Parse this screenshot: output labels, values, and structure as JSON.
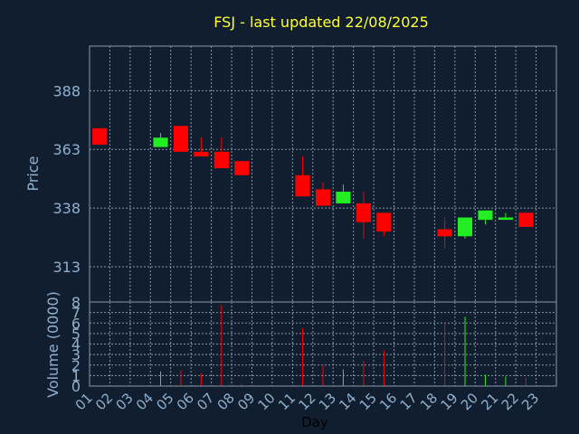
{
  "title": "FSJ - last updated 22/08/2025",
  "colors": {
    "up": "#22ee22",
    "down": "#ff0000",
    "title": "#ffff33",
    "axis": "#8fb0cf",
    "grid": "#8899aa",
    "background": "#111e2f"
  },
  "chart_data": [
    {
      "type": "candlestick",
      "ylabel": "Price",
      "ylim": [
        298,
        407
      ],
      "yticks": [
        313,
        338,
        363,
        388
      ],
      "grid": true,
      "candles": [
        {
          "day": 1,
          "open": 372,
          "close": 365,
          "high": 372,
          "low": 365
        },
        {
          "day": 4,
          "open": 364,
          "close": 368,
          "high": 370,
          "low": 364
        },
        {
          "day": 5,
          "open": 373,
          "close": 362,
          "high": 373,
          "low": 362
        },
        {
          "day": 6,
          "open": 362,
          "close": 360,
          "high": 368,
          "low": 360
        },
        {
          "day": 7,
          "open": 362,
          "close": 355,
          "high": 368,
          "low": 355
        },
        {
          "day": 8,
          "open": 358,
          "close": 352,
          "high": 358,
          "low": 352
        },
        {
          "day": 11,
          "open": 352,
          "close": 343,
          "high": 360,
          "low": 343
        },
        {
          "day": 12,
          "open": 346,
          "close": 339,
          "high": 349,
          "low": 339
        },
        {
          "day": 13,
          "open": 340,
          "close": 345,
          "high": 348,
          "low": 340
        },
        {
          "day": 14,
          "open": 340,
          "close": 332,
          "high": 345,
          "low": 325
        },
        {
          "day": 15,
          "open": 336,
          "close": 328,
          "high": 336,
          "low": 326
        },
        {
          "day": 18,
          "open": 329,
          "close": 326,
          "high": 334,
          "low": 321
        },
        {
          "day": 19,
          "open": 326,
          "close": 334,
          "high": 334,
          "low": 325
        },
        {
          "day": 20,
          "open": 333,
          "close": 337,
          "high": 337,
          "low": 331
        },
        {
          "day": 21,
          "open": 333,
          "close": 334,
          "high": 336,
          "low": 333
        },
        {
          "day": 22,
          "open": 336,
          "close": 330,
          "high": 336,
          "low": 330
        }
      ]
    },
    {
      "type": "bar",
      "ylabel": "Volume (0000)",
      "xlabel": "Day",
      "ylim": [
        0,
        8
      ],
      "yticks": [
        0,
        1,
        2,
        3,
        4,
        5,
        6,
        7,
        8
      ],
      "grid": true,
      "categories": [
        "01",
        "02",
        "03",
        "04",
        "05",
        "06",
        "07",
        "08",
        "09",
        "10",
        "11",
        "12",
        "13",
        "14",
        "15",
        "16",
        "17",
        "18",
        "19",
        "20",
        "21",
        "22",
        "23"
      ],
      "volumes": [
        {
          "day": 4,
          "value": 1.4,
          "dir": "up"
        },
        {
          "day": 5,
          "value": 1.5,
          "dir": "down"
        },
        {
          "day": 6,
          "value": 1.2,
          "dir": "down"
        },
        {
          "day": 7,
          "value": 7.7,
          "dir": "down"
        },
        {
          "day": 8,
          "value": 0.2,
          "dir": "down"
        },
        {
          "day": 11,
          "value": 5.5,
          "dir": "down"
        },
        {
          "day": 12,
          "value": 2.0,
          "dir": "down"
        },
        {
          "day": 13,
          "value": 1.6,
          "dir": "up"
        },
        {
          "day": 14,
          "value": 2.4,
          "dir": "down"
        },
        {
          "day": 15,
          "value": 3.4,
          "dir": "down"
        },
        {
          "day": 18,
          "value": 6.1,
          "dir": "down"
        },
        {
          "day": 19,
          "value": 6.6,
          "dir": "up"
        },
        {
          "day": 20,
          "value": 1.1,
          "dir": "up"
        },
        {
          "day": 21,
          "value": 0.9,
          "dir": "up"
        },
        {
          "day": 22,
          "value": 0.8,
          "dir": "down"
        }
      ]
    }
  ]
}
